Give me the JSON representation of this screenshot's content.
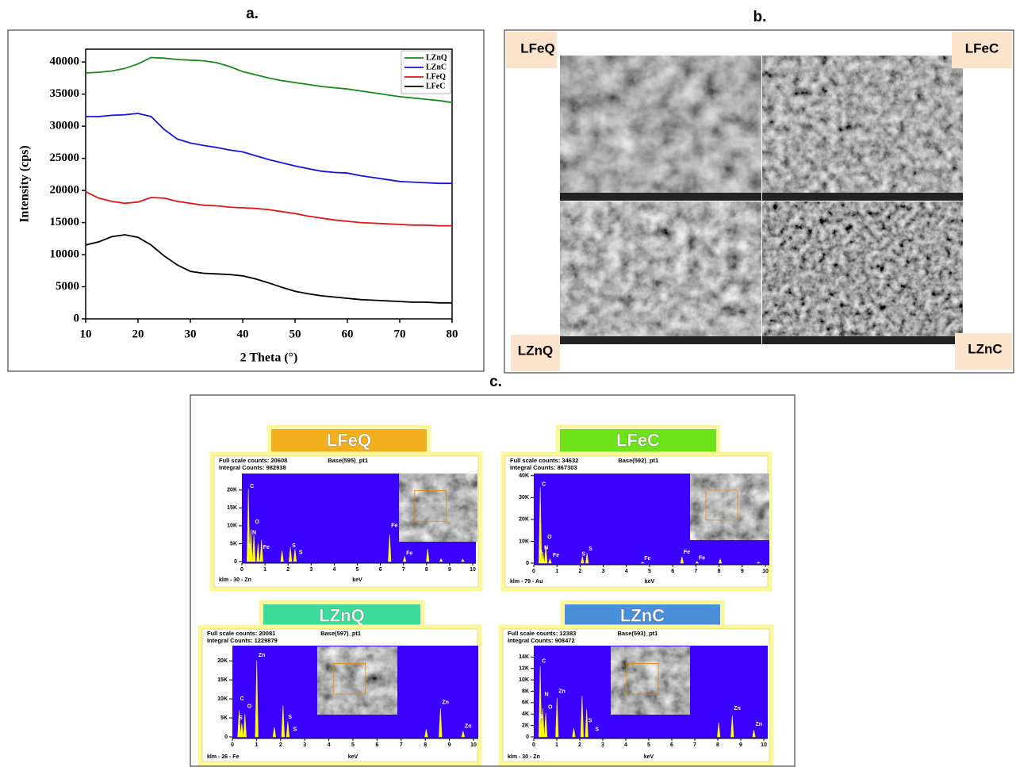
{
  "panel_labels": [
    "a.",
    "b.",
    "c."
  ],
  "sem_labels": [
    "LFeQ",
    "LFeC",
    "LZnQ",
    "LZnC"
  ],
  "chart_data": [
    {
      "type": "line",
      "x_label": "2 Theta (°)",
      "y_label": "Intensity (cps)",
      "x": [
        10,
        12.5,
        15,
        17.5,
        20,
        22.5,
        25,
        27.5,
        30,
        32.5,
        35,
        37.5,
        40,
        42.5,
        45,
        47.5,
        50,
        52.5,
        55,
        57.5,
        60,
        62.5,
        65,
        67.5,
        70,
        72.5,
        75,
        77.5,
        80
      ],
      "xlim": [
        10,
        80
      ],
      "xticks": [
        10,
        20,
        30,
        40,
        50,
        60,
        70,
        80
      ],
      "ylim": [
        0,
        42000
      ],
      "yticks": [
        0,
        5000,
        10000,
        15000,
        20000,
        25000,
        30000,
        35000,
        40000
      ],
      "legend": "upper right",
      "series": [
        {
          "name": "LZnQ",
          "color": "#1a8a1a",
          "values": [
            38300,
            38400,
            38600,
            39000,
            39700,
            40700,
            40600,
            40400,
            40300,
            40200,
            39900,
            39300,
            38500,
            38000,
            37500,
            37100,
            36800,
            36500,
            36200,
            36000,
            35800,
            35500,
            35200,
            34900,
            34600,
            34400,
            34200,
            34000,
            33700
          ]
        },
        {
          "name": "LZnC",
          "color": "#1515e0",
          "values": [
            31500,
            31500,
            31700,
            31800,
            32000,
            31500,
            29500,
            28000,
            27400,
            27000,
            26700,
            26300,
            26000,
            25400,
            24800,
            24300,
            23800,
            23400,
            23000,
            22800,
            22700,
            22300,
            22000,
            21700,
            21400,
            21300,
            21200,
            21100,
            21100
          ]
        },
        {
          "name": "LFeQ",
          "color": "#e01515",
          "values": [
            19800,
            18800,
            18300,
            18000,
            18200,
            18900,
            18800,
            18300,
            18000,
            17700,
            17600,
            17400,
            17300,
            17200,
            17000,
            16700,
            16400,
            16000,
            15700,
            15400,
            15200,
            15000,
            14900,
            14800,
            14700,
            14600,
            14600,
            14500,
            14500
          ]
        },
        {
          "name": "LFeC",
          "color": "#000000",
          "values": [
            11500,
            12000,
            12800,
            13100,
            12700,
            11500,
            9800,
            8400,
            7400,
            7100,
            7000,
            6900,
            6700,
            6200,
            5600,
            4900,
            4300,
            3900,
            3600,
            3400,
            3200,
            3000,
            2900,
            2800,
            2700,
            2600,
            2600,
            2500,
            2500
          ]
        }
      ]
    },
    {
      "type": "spectrum",
      "title": "LFeQ",
      "banner_color": "#f2b01e",
      "full_scale": "Full scale counts: 20608",
      "base": "Base(595)_pt1",
      "integral": "Integral Counts: 982938",
      "detector": "klm - 30 - Zn",
      "x_label": "keV",
      "xlim": [
        0,
        10
      ],
      "xticks": [
        0,
        1,
        2,
        3,
        4,
        5,
        6,
        7,
        8,
        9,
        10
      ],
      "ylim": [
        0,
        24600
      ],
      "yticks": [
        0,
        {
          "value": 5000,
          "label": "5K"
        },
        {
          "value": 10000,
          "label": "10K"
        },
        {
          "value": 15000,
          "label": "15K"
        },
        {
          "value": 20000,
          "label": "20K"
        }
      ],
      "color": "#ffff00",
      "x": [
        0.28,
        0.39,
        0.52,
        0.7,
        0.85,
        1.74,
        2.1,
        2.3,
        6.4,
        7.05,
        8.05,
        8.63,
        9.57
      ],
      "values": [
        20300,
        9000,
        7500,
        5000,
        6000,
        3000,
        4000,
        3500,
        7500,
        1500,
        3500,
        800,
        700
      ],
      "annotations": [
        {
          "text": "C",
          "x": 0.28,
          "y": 21000
        },
        {
          "text": "O",
          "x": 0.5,
          "y": 11000
        },
        {
          "text": "N",
          "x": 0.38,
          "y": 8000
        },
        {
          "text": "Fe",
          "x": 0.85,
          "y": 4000
        },
        {
          "text": "S",
          "x": 0.15,
          "y": 4300
        },
        {
          "text": "S",
          "x": 2.1,
          "y": 4400
        },
        {
          "text": "S",
          "x": 2.4,
          "y": 2500
        },
        {
          "text": "Fe",
          "x": 6.4,
          "y": 10000
        },
        {
          "text": "Fe",
          "x": 7.05,
          "y": 2300
        }
      ]
    },
    {
      "type": "spectrum",
      "title": "LFeC",
      "banner_color": "#6ee21a",
      "full_scale": "Full scale counts: 34632",
      "base": "Base(592)_pt1",
      "integral": "Integral Counts: 867303",
      "detector": "klm - 79 - Au",
      "x_label": "keV",
      "xlim": [
        0,
        10
      ],
      "xticks": [
        0,
        1,
        2,
        3,
        4,
        5,
        6,
        7,
        8,
        9,
        10
      ],
      "ylim": [
        0,
        41000
      ],
      "yticks": [
        0,
        {
          "value": 10000,
          "label": "10K"
        },
        {
          "value": 20000,
          "label": "20K"
        },
        {
          "value": 30000,
          "label": "30K"
        },
        {
          "value": 40000,
          "label": "40K"
        }
      ],
      "color": "#ffff00",
      "x": [
        0.28,
        0.39,
        0.52,
        0.7,
        2.1,
        2.3,
        4.7,
        6.4,
        7.05,
        8.05,
        9.7
      ],
      "values": [
        34600,
        5000,
        8000,
        2000,
        3000,
        4500,
        500,
        3000,
        800,
        2000,
        500
      ],
      "annotations": [
        {
          "text": "C",
          "x": 0.28,
          "y": 36000
        },
        {
          "text": "O",
          "x": 0.52,
          "y": 12000
        },
        {
          "text": "N",
          "x": 0.38,
          "y": 7000
        },
        {
          "text": "S",
          "x": 0.15,
          "y": 5000
        },
        {
          "text": "Fe",
          "x": 0.75,
          "y": 3500
        },
        {
          "text": "S",
          "x": 2.3,
          "y": 6500
        },
        {
          "text": "S",
          "x": 2.0,
          "y": 4200
        },
        {
          "text": "Fe",
          "x": 4.7,
          "y": 2200
        },
        {
          "text": "Fe",
          "x": 6.4,
          "y": 5000
        },
        {
          "text": "Fe",
          "x": 7.05,
          "y": 2300
        }
      ]
    },
    {
      "type": "spectrum",
      "title": "LZnQ",
      "banner_color": "#3ddc9a",
      "full_scale": "Full scale counts: 20081",
      "base": "Base(597)_pt1",
      "integral": "Integral Counts: 1229879",
      "detector": "klm - 26 - Fe",
      "x_label": "keV",
      "xlim": [
        0,
        10
      ],
      "xticks": [
        0,
        1,
        2,
        3,
        4,
        5,
        6,
        7,
        8,
        9,
        10
      ],
      "ylim": [
        0,
        24000
      ],
      "yticks": [
        0,
        {
          "value": 5000,
          "label": "5K"
        },
        {
          "value": 10000,
          "label": "10K"
        },
        {
          "value": 15000,
          "label": "15K"
        },
        {
          "value": 20000,
          "label": "20K"
        }
      ],
      "color": "#ffff00",
      "x": [
        0.28,
        0.39,
        0.52,
        1.01,
        1.74,
        2.1,
        2.3,
        8.04,
        8.63,
        9.57
      ],
      "values": [
        7000,
        3500,
        6000,
        20081,
        2500,
        8300,
        4000,
        2000,
        7500,
        1500
      ],
      "annotations": [
        {
          "text": "C",
          "x": 0.25,
          "y": 10000
        },
        {
          "text": "O",
          "x": 0.55,
          "y": 8000
        },
        {
          "text": "S",
          "x": 0.2,
          "y": 5000
        },
        {
          "text": "Zn",
          "x": 1.01,
          "y": 21500
        },
        {
          "text": "S",
          "x": 2.25,
          "y": 5200
        },
        {
          "text": "S",
          "x": 2.45,
          "y": 2000
        },
        {
          "text": "Zn",
          "x": 8.63,
          "y": 9000
        },
        {
          "text": "Zn",
          "x": 9.57,
          "y": 2800
        }
      ]
    },
    {
      "type": "spectrum",
      "title": "LZnC",
      "banner_color": "#4a90d9",
      "full_scale": "Full scale counts: 12383",
      "base": "Base(593)_pt1",
      "integral": "Integral Counts: 908472",
      "detector": "klm - 30 - Zn",
      "x_label": "keV",
      "xlim": [
        0,
        10
      ],
      "xticks": [
        0,
        1,
        2,
        3,
        4,
        5,
        6,
        7,
        8,
        9,
        10
      ],
      "ylim": [
        0,
        16000
      ],
      "yticks": [
        0,
        {
          "value": 2000,
          "label": "2K"
        },
        {
          "value": 4000,
          "label": "4K"
        },
        {
          "value": 6000,
          "label": "6K"
        },
        {
          "value": 8000,
          "label": "8K"
        },
        {
          "value": 10000,
          "label": "10K"
        },
        {
          "value": 12000,
          "label": "12K"
        },
        {
          "value": 14000,
          "label": "14K"
        }
      ],
      "color": "#ffff00",
      "x": [
        0.28,
        0.39,
        0.52,
        1.01,
        1.74,
        2.1,
        2.3,
        8.04,
        8.63,
        9.57
      ],
      "values": [
        12383,
        5000,
        4200,
        6800,
        1500,
        7200,
        4800,
        2500,
        3700,
        1200
      ],
      "annotations": [
        {
          "text": "C",
          "x": 0.28,
          "y": 13300
        },
        {
          "text": "N",
          "x": 0.4,
          "y": 7400
        },
        {
          "text": "O",
          "x": 0.55,
          "y": 5200
        },
        {
          "text": "S",
          "x": 0.15,
          "y": 3500
        },
        {
          "text": "Zn",
          "x": 1.01,
          "y": 8000
        },
        {
          "text": "S",
          "x": 2.3,
          "y": 2800
        },
        {
          "text": "S",
          "x": 2.6,
          "y": 1300
        },
        {
          "text": "Zn",
          "x": 8.63,
          "y": 5000
        },
        {
          "text": "Zn",
          "x": 9.57,
          "y": 2200
        }
      ]
    }
  ]
}
